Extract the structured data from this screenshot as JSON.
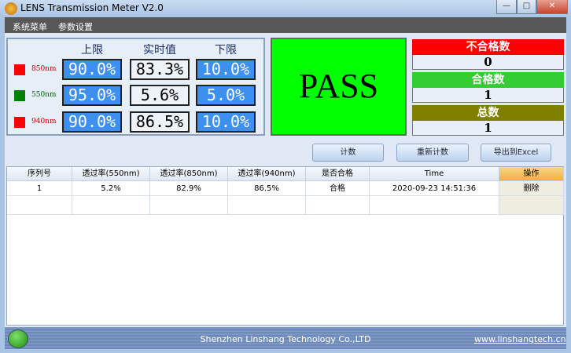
{
  "window": {
    "title": "LENS Transmission Meter V2.0",
    "minimize": "—",
    "maximize": "□",
    "close": "✕"
  },
  "menu": [
    "系统菜单",
    "参数设置"
  ],
  "panel": {
    "headers": [
      "上限",
      "实时值",
      "下限"
    ],
    "rows": [
      {
        "wavelength": "850nm",
        "color": "#ff0000",
        "upper": "90.0%",
        "realtime": "83.3%",
        "lower": "10.0%"
      },
      {
        "wavelength": "550nm",
        "color": "#008000",
        "upper": "95.0%",
        "realtime": "5.6%",
        "lower": "5.0%"
      },
      {
        "wavelength": "940nm",
        "color": "#ff0000",
        "upper": "90.0%",
        "realtime": "86.5%",
        "lower": "10.0%"
      }
    ]
  },
  "result": {
    "text": "PASS",
    "color": "#00ff00"
  },
  "stats": [
    {
      "label": "不合格数",
      "value": "0",
      "color": "#ff0000"
    },
    {
      "label": "合格数",
      "value": "1",
      "color": "#33cc33"
    },
    {
      "label": "总数",
      "value": "1",
      "color": "#808000"
    }
  ],
  "buttons": {
    "count": "计数",
    "recount": "重新计数",
    "export": "导出到Excel"
  },
  "table": {
    "headers": [
      "序列号",
      "透过率(550nm)",
      "透过率(850nm)",
      "透过率(940nm)",
      "是否合格",
      "Time",
      "操作"
    ],
    "rows": [
      [
        "1",
        "5.2%",
        "82.9%",
        "86.5%",
        "合格",
        "2020-09-23 14:51:36",
        "删除"
      ]
    ]
  },
  "status": {
    "led": "green",
    "company": "Shenzhen Linshang Technology Co.,LTD",
    "website": "www.linshangtech.cn"
  }
}
